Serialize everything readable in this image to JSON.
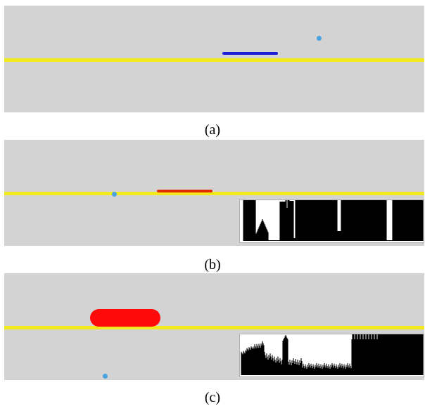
{
  "colors": {
    "background": "#d3d3d3",
    "track": "#f2ea1f",
    "ball": "#4aa3e0",
    "paddle_a": "#1a1fd6",
    "paddle_b": "#e62a00",
    "paddle_c": "#ff0a0a",
    "spectrum": "#000000"
  },
  "panels": [
    {
      "caption": "(a)",
      "has_spectrum": false
    },
    {
      "caption": "(b)",
      "has_spectrum": true
    },
    {
      "caption": "(c)",
      "has_spectrum": true
    }
  ]
}
